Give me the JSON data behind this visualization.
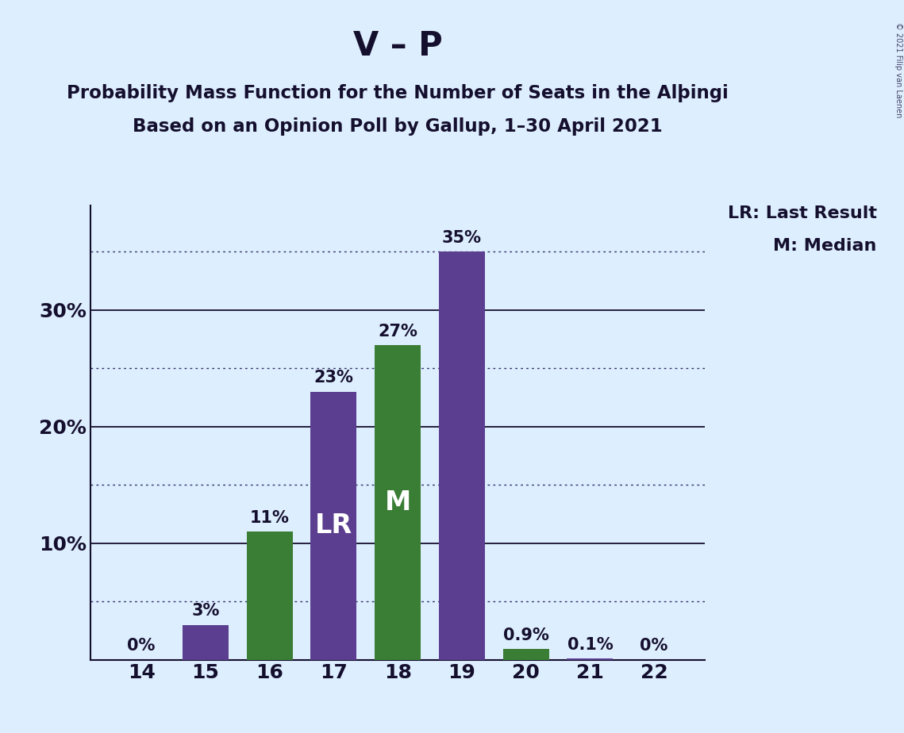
{
  "title": "V – P",
  "subtitle1": "Probability Mass Function for the Number of Seats in the Alþingi",
  "subtitle2": "Based on an Opinion Poll by Gallup, 1–30 April 2021",
  "copyright": "© 2021 Filip van Laenen",
  "categories": [
    14,
    15,
    16,
    17,
    18,
    19,
    20,
    21,
    22
  ],
  "values": [
    0.0,
    3.0,
    11.0,
    23.0,
    27.0,
    35.0,
    0.9,
    0.1,
    0.0
  ],
  "labels": [
    "0%",
    "3%",
    "11%",
    "23%",
    "27%",
    "35%",
    "0.9%",
    "0.1%",
    "0%"
  ],
  "colors": [
    "#5b3e8f",
    "#5b3e8f",
    "#3a7d35",
    "#5b3e8f",
    "#3a7d35",
    "#5b3e8f",
    "#3a7d35",
    "#5b3e8f",
    "#5b3e8f"
  ],
  "bar_labels": [
    "",
    "",
    "",
    "LR",
    "M",
    "",
    "",
    "",
    ""
  ],
  "solid_lines": [
    10,
    20,
    30
  ],
  "dotted_lines": [
    5,
    15,
    25,
    35
  ],
  "yticks": [
    10,
    20,
    30
  ],
  "ytick_labels": [
    "10%",
    "20%",
    "30%"
  ],
  "ylim": [
    0,
    39
  ],
  "background_color": "#ddeeff",
  "legend_lr": "LR: Last Result",
  "legend_m": "M: Median",
  "title_fontsize": 30,
  "subtitle_fontsize": 16.5,
  "tick_fontsize": 18,
  "label_fontsize": 15,
  "bar_inner_fontsize": 24,
  "legend_fontsize": 16,
  "text_color": "#150f2e",
  "line_color": "#150f2e",
  "dotted_color": "#333366",
  "copyright_color": "#444466"
}
